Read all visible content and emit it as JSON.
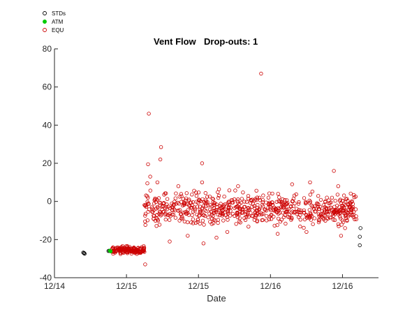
{
  "chart_data": {
    "type": "scatter",
    "title": "Vent Flow",
    "subtitle": "Drop-outs: 1",
    "xlabel": "Date",
    "ylabel": "",
    "x_ticks": [
      "12/14",
      "12/15",
      "12/15",
      "12/16",
      "12/16"
    ],
    "x_tick_values": [
      0,
      1,
      2,
      3,
      4
    ],
    "xlim": [
      0,
      4.5
    ],
    "ylim": [
      -40,
      80
    ],
    "y_ticks": [
      -40,
      -20,
      0,
      20,
      40,
      60,
      80
    ],
    "grid": false,
    "legend_position": "top-left",
    "series": [
      {
        "name": "STDs",
        "color": "#000000",
        "marker": "open-circle",
        "points": [
          [
            0.4,
            -26.8
          ],
          [
            0.41,
            -27.2
          ],
          [
            0.41,
            -27.0
          ],
          [
            0.42,
            -27.4
          ],
          [
            0.75,
            -26.0
          ],
          [
            0.76,
            -25.8
          ],
          [
            4.25,
            -14.0
          ],
          [
            4.24,
            -18.5
          ],
          [
            4.24,
            -23.0
          ]
        ]
      },
      {
        "name": "ATM",
        "color": "#00cc00",
        "marker": "filled-circle",
        "points": [
          [
            0.77,
            -25.8
          ],
          [
            0.78,
            -26.2
          ]
        ]
      },
      {
        "name": "EQU",
        "color": "#cc0000",
        "marker": "open-circle",
        "clusters": [
          {
            "x_range": [
              0.8,
              1.25
            ],
            "y_center": -25.5,
            "y_spread": 1.5,
            "count": 160
          },
          {
            "x_range": [
              1.25,
              4.2
            ],
            "y_center": -4,
            "y_spread": 6.5,
            "count": 700
          }
        ],
        "points": [
          [
            1.26,
            -33
          ],
          [
            1.31,
            46
          ],
          [
            1.3,
            19.5
          ],
          [
            1.29,
            9.5
          ],
          [
            1.33,
            13
          ],
          [
            1.48,
            28.5
          ],
          [
            1.47,
            22
          ],
          [
            1.43,
            10
          ],
          [
            2.05,
            20
          ],
          [
            2.87,
            67
          ],
          [
            2.05,
            10
          ],
          [
            3.88,
            16
          ],
          [
            3.94,
            8
          ],
          [
            3.55,
            10
          ],
          [
            2.4,
            -16
          ],
          [
            3.1,
            -17
          ],
          [
            3.5,
            -16
          ],
          [
            3.98,
            -18
          ],
          [
            2.07,
            -22
          ],
          [
            1.6,
            -21
          ],
          [
            1.85,
            -18
          ],
          [
            2.25,
            -19
          ],
          [
            1.72,
            8
          ],
          [
            2.55,
            8
          ],
          [
            3.3,
            9
          ]
        ]
      }
    ]
  }
}
